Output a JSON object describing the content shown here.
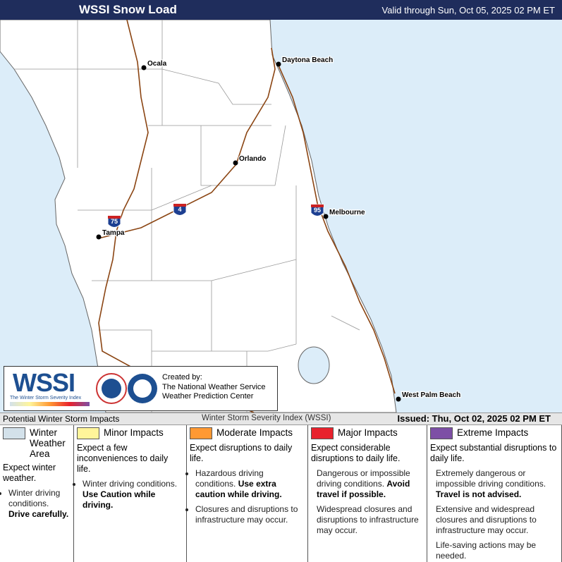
{
  "header": {
    "title": "WSSI Snow Load",
    "valid": "Valid through Sun, Oct 05, 2025 02 PM ET"
  },
  "map": {
    "cities": [
      "Ocala",
      "Daytona Beach",
      "Orlando",
      "Melbourne",
      "Tampa",
      "West Palm Beach"
    ],
    "highways": [
      "75",
      "4",
      "95"
    ]
  },
  "logo": {
    "mark": "WSSI",
    "subtitle": "The Winter Storm Severity Index",
    "created": [
      "Created by:",
      "The National Weather Service",
      "Weather Prediction Center"
    ]
  },
  "status_bar": {
    "left": "Potential Winter Storm Impacts",
    "center": "Winter Storm Severity Index (WSSI)",
    "right": "Issued: Thu, Oct 02, 2025 02 PM ET"
  },
  "legend": [
    {
      "name": "Winter Weather Area",
      "color": "#d3e1ea",
      "summary": "Expect winter weather.",
      "bulleted": true,
      "bullets": [
        {
          "text": "Winter driving conditions.",
          "strong": "Drive carefully."
        }
      ]
    },
    {
      "name": "Minor Impacts",
      "color": "#fff59a",
      "summary": "Expect a few inconveniences to daily life.",
      "bulleted": true,
      "bullets": [
        {
          "text": "Winter driving conditions.",
          "strong": "Use Caution while driving."
        }
      ]
    },
    {
      "name": "Moderate Impacts",
      "color": "#ff9933",
      "summary": "Expect disruptions to daily life.",
      "bulleted": true,
      "bullets": [
        {
          "text": "Hazardous driving conditions.",
          "strong": "Use extra caution while driving."
        },
        {
          "text": "Closures and disruptions to infrastructure may occur."
        }
      ]
    },
    {
      "name": "Major Impacts",
      "color": "#e8222d",
      "summary": "Expect considerable disruptions to daily life.",
      "bulleted": false,
      "bullets": [
        {
          "text": "Dangerous or impossible driving conditions.",
          "strong": "Avoid travel if possible."
        },
        {
          "text": "Widespread closures and disruptions to infrastructure may occur."
        }
      ]
    },
    {
      "name": "Extreme Impacts",
      "color": "#7d4fa5",
      "summary": "Expect substantial disruptions to daily life.",
      "bulleted": false,
      "bullets": [
        {
          "text": "Extremely dangerous or impossible driving conditions.",
          "strong": "Travel is not advised."
        },
        {
          "text": "Extensive and widespread closures and disruptions to infrastructure may occur."
        },
        {
          "text": "Life-saving actions may be needed."
        }
      ]
    }
  ]
}
